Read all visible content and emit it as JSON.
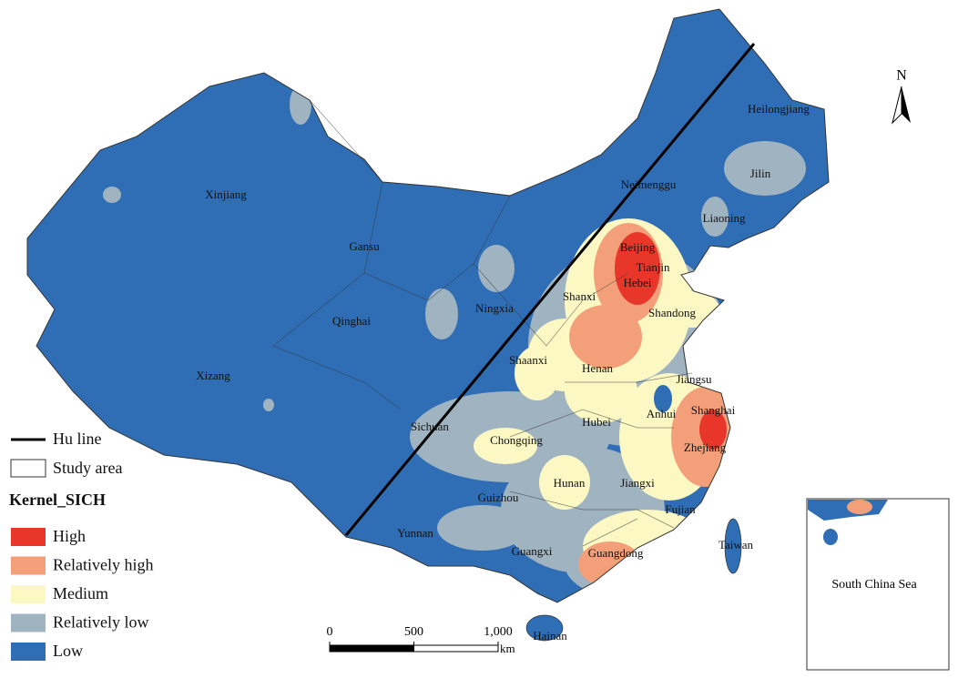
{
  "map": {
    "provinces": [
      "Xinjiang",
      "Gansu",
      "Qinghai",
      "Xizang",
      "Ningxia",
      "Shanxi",
      "Shaanxi",
      "Henan",
      "Hebei",
      "Beijing",
      "Tianjin",
      "Shandong",
      "Neimenggu",
      "Heilongjiang",
      "Jilin",
      "Liaoning",
      "Sichuan",
      "Chongqing",
      "Hubei",
      "Anhui",
      "Jiangsu",
      "Shanghai",
      "Zhejiang",
      "Hunan",
      "Jiangxi",
      "Fujian",
      "Guizhou",
      "Yunnan",
      "Guangxi",
      "Guangdong",
      "Taiwan",
      "Hainan"
    ],
    "north": "N",
    "inset_label": "South China Sea",
    "legend": {
      "lines": [
        "Hu line",
        "Study area"
      ],
      "title": "Kernel_SICH",
      "classes": [
        {
          "name": "High",
          "color": "#e8362b"
        },
        {
          "name": "Relatively high",
          "color": "#f3a07a"
        },
        {
          "name": "Medium",
          "color": "#fbf8c4"
        },
        {
          "name": "Relatively low",
          "color": "#9fb3c1"
        },
        {
          "name": "Low",
          "color": "#2f6eb5"
        }
      ]
    },
    "scale": {
      "ticks": [
        0,
        500,
        {
          "value": 1000,
          "label": "1,000"
        }
      ],
      "unit": "km"
    }
  }
}
